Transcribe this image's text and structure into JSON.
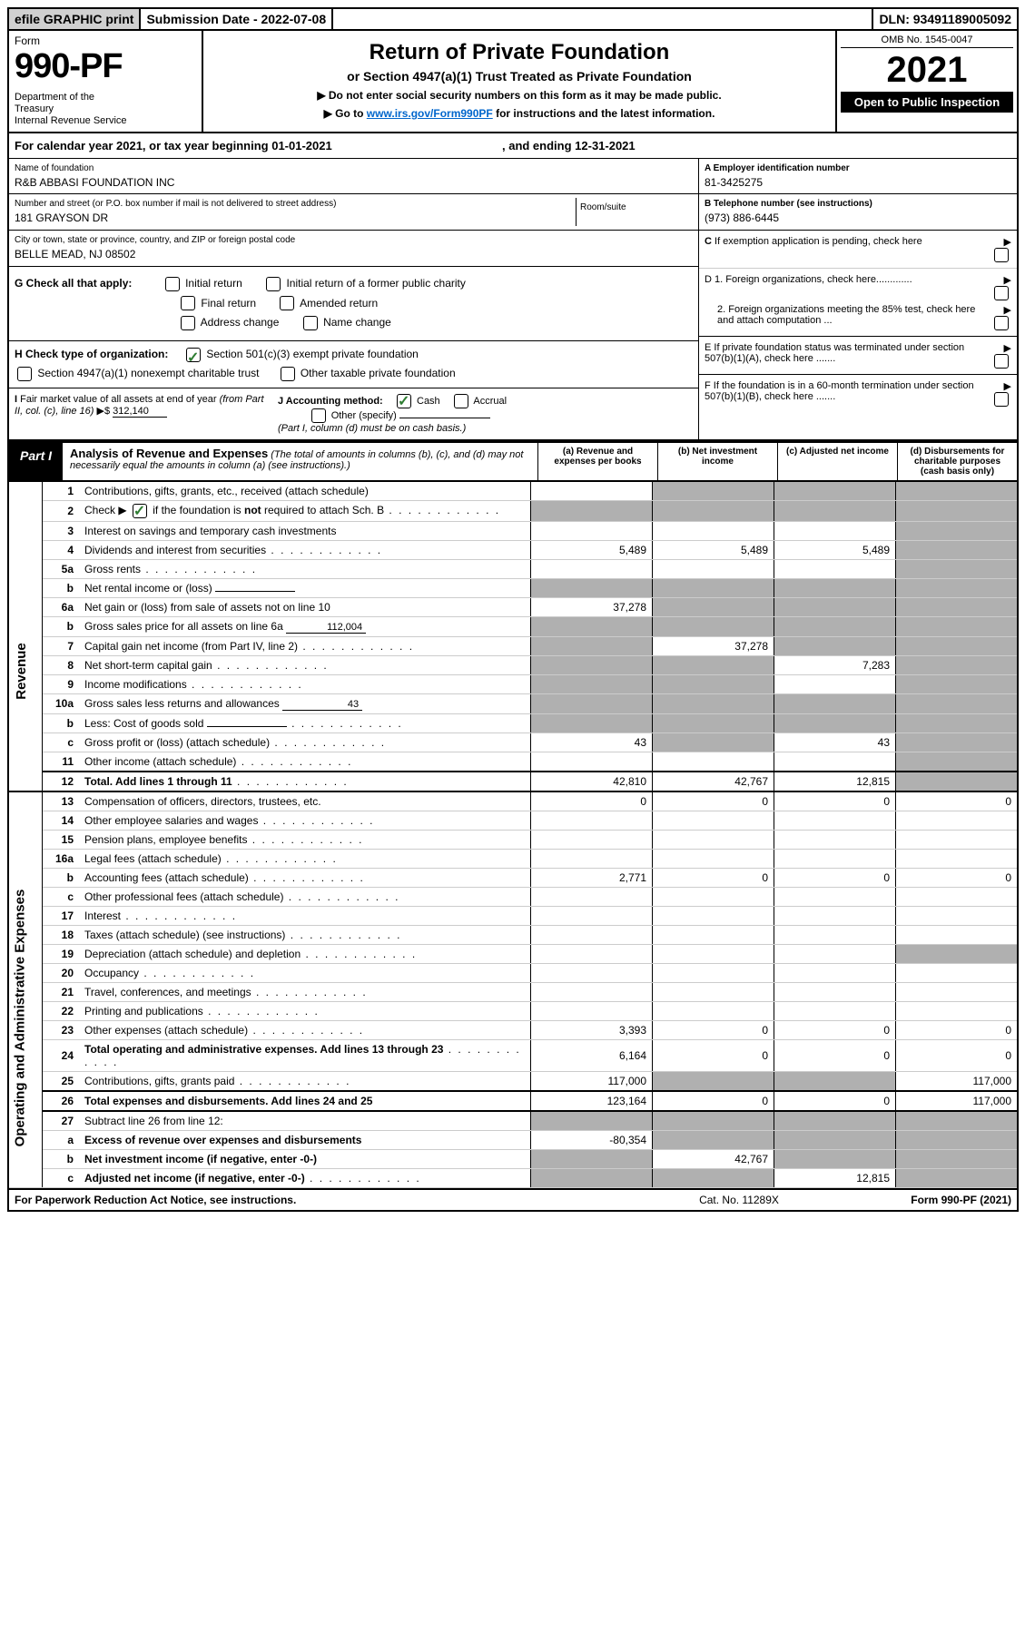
{
  "topbar": {
    "efile": "efile GRAPHIC print",
    "sub_label": "Submission Date - 2022-07-08",
    "dln": "DLN: 93491189005092"
  },
  "header": {
    "form_label": "Form",
    "form_num": "990-PF",
    "dept": "Department of the Treasury\nInternal Revenue Service",
    "title": "Return of Private Foundation",
    "subtitle": "or Section 4947(a)(1) Trust Treated as Private Foundation",
    "instr1": "▶ Do not enter social security numbers on this form as it may be made public.",
    "instr2_pre": "▶ Go to ",
    "instr2_link": "www.irs.gov/Form990PF",
    "instr2_post": " for instructions and the latest information.",
    "omb": "OMB No. 1545-0047",
    "year": "2021",
    "inspect": "Open to Public Inspection"
  },
  "calendar": {
    "text": "For calendar year 2021, or tax year beginning 01-01-2021",
    "end": ", and ending 12-31-2021"
  },
  "info": {
    "name_label": "Name of foundation",
    "name": "R&B ABBASI FOUNDATION INC",
    "addr_label": "Number and street (or P.O. box number if mail is not delivered to street address)",
    "addr": "181 GRAYSON DR",
    "room_label": "Room/suite",
    "city_label": "City or town, state or province, country, and ZIP or foreign postal code",
    "city": "BELLE MEAD, NJ  08502",
    "ein_label": "A Employer identification number",
    "ein": "81-3425275",
    "tel_label": "B Telephone number (see instructions)",
    "tel": "(973) 886-6445",
    "c_label": "C If exemption application is pending, check here",
    "d1": "D 1. Foreign organizations, check here.............",
    "d2": "2. Foreign organizations meeting the 85% test, check here and attach computation ...",
    "e": "E  If private foundation status was terminated under section 507(b)(1)(A), check here .......",
    "f": "F  If the foundation is in a 60-month termination under section 507(b)(1)(B), check here ......."
  },
  "g": {
    "label": "G Check all that apply:",
    "opts": [
      "Initial return",
      "Initial return of a former public charity",
      "Final return",
      "Amended return",
      "Address change",
      "Name change"
    ]
  },
  "h": {
    "label": "H Check type of organization:",
    "opt1": "Section 501(c)(3) exempt private foundation",
    "opt2": "Section 4947(a)(1) nonexempt charitable trust",
    "opt3": "Other taxable private foundation"
  },
  "i": {
    "label": "I Fair market value of all assets at end of year (from Part II, col. (c), line 16)",
    "val": "312,140"
  },
  "j": {
    "label": "J Accounting method:",
    "cash": "Cash",
    "accrual": "Accrual",
    "other": "Other (specify)",
    "note": "(Part I, column (d) must be on cash basis.)"
  },
  "part1": {
    "tab": "Part I",
    "title": "Analysis of Revenue and Expenses",
    "note": "(The total of amounts in columns (b), (c), and (d) may not necessarily equal the amounts in column (a) (see instructions).)",
    "cols": {
      "a": "(a)  Revenue and expenses per books",
      "b": "(b)  Net investment income",
      "c": "(c)  Adjusted net income",
      "d": "(d)  Disbursements for charitable purposes (cash basis only)"
    }
  },
  "side": {
    "revenue": "Revenue",
    "expenses": "Operating and Administrative Expenses"
  },
  "rows": [
    {
      "n": "1",
      "d": "Contributions, gifts, grants, etc., received (attach schedule)",
      "a": "",
      "b": "gray",
      "c": "gray",
      "dd": "gray"
    },
    {
      "n": "2",
      "d": "Check ▶ ☑ if the foundation is not required to attach Sch. B",
      "dots": true,
      "a": "gray",
      "b": "gray",
      "c": "gray",
      "dd": "gray",
      "checked": true
    },
    {
      "n": "3",
      "d": "Interest on savings and temporary cash investments",
      "a": "",
      "b": "",
      "c": "",
      "dd": "gray"
    },
    {
      "n": "4",
      "d": "Dividends and interest from securities",
      "dots": true,
      "a": "5,489",
      "b": "5,489",
      "c": "5,489",
      "dd": "gray"
    },
    {
      "n": "5a",
      "d": "Gross rents",
      "dots": true,
      "a": "",
      "b": "",
      "c": "",
      "dd": "gray"
    },
    {
      "n": "b",
      "d": "Net rental income or (loss)",
      "inline": "",
      "a": "gray",
      "b": "gray",
      "c": "gray",
      "dd": "gray"
    },
    {
      "n": "6a",
      "d": "Net gain or (loss) from sale of assets not on line 10",
      "a": "37,278",
      "b": "gray",
      "c": "gray",
      "dd": "gray"
    },
    {
      "n": "b",
      "d": "Gross sales price for all assets on line 6a",
      "inline": "112,004",
      "a": "gray",
      "b": "gray",
      "c": "gray",
      "dd": "gray"
    },
    {
      "n": "7",
      "d": "Capital gain net income (from Part IV, line 2)",
      "dots": true,
      "a": "gray",
      "b": "37,278",
      "c": "gray",
      "dd": "gray"
    },
    {
      "n": "8",
      "d": "Net short-term capital gain",
      "dots": true,
      "a": "gray",
      "b": "gray",
      "c": "7,283",
      "dd": "gray"
    },
    {
      "n": "9",
      "d": "Income modifications",
      "dots": true,
      "a": "gray",
      "b": "gray",
      "c": "",
      "dd": "gray"
    },
    {
      "n": "10a",
      "d": "Gross sales less returns and allowances",
      "inline": "43",
      "a": "gray",
      "b": "gray",
      "c": "gray",
      "dd": "gray"
    },
    {
      "n": "b",
      "d": "Less: Cost of goods sold",
      "dots": true,
      "inline": "",
      "a": "gray",
      "b": "gray",
      "c": "gray",
      "dd": "gray"
    },
    {
      "n": "c",
      "d": "Gross profit or (loss) (attach schedule)",
      "dots": true,
      "a": "43",
      "b": "gray",
      "c": "43",
      "dd": "gray"
    },
    {
      "n": "11",
      "d": "Other income (attach schedule)",
      "dots": true,
      "a": "",
      "b": "",
      "c": "",
      "dd": "gray"
    },
    {
      "n": "12",
      "d": "Total. Add lines 1 through 11",
      "dots": true,
      "bold": true,
      "a": "42,810",
      "b": "42,767",
      "c": "12,815",
      "dd": "gray"
    },
    {
      "n": "13",
      "d": "Compensation of officers, directors, trustees, etc.",
      "a": "0",
      "b": "0",
      "c": "0",
      "dd": "0",
      "sectstart": true
    },
    {
      "n": "14",
      "d": "Other employee salaries and wages",
      "dots": true,
      "a": "",
      "b": "",
      "c": "",
      "dd": ""
    },
    {
      "n": "15",
      "d": "Pension plans, employee benefits",
      "dots": true,
      "a": "",
      "b": "",
      "c": "",
      "dd": ""
    },
    {
      "n": "16a",
      "d": "Legal fees (attach schedule)",
      "dots": true,
      "a": "",
      "b": "",
      "c": "",
      "dd": ""
    },
    {
      "n": "b",
      "d": "Accounting fees (attach schedule)",
      "dots": true,
      "a": "2,771",
      "b": "0",
      "c": "0",
      "dd": "0"
    },
    {
      "n": "c",
      "d": "Other professional fees (attach schedule)",
      "dots": true,
      "a": "",
      "b": "",
      "c": "",
      "dd": ""
    },
    {
      "n": "17",
      "d": "Interest",
      "dots": true,
      "a": "",
      "b": "",
      "c": "",
      "dd": ""
    },
    {
      "n": "18",
      "d": "Taxes (attach schedule) (see instructions)",
      "dots": true,
      "a": "",
      "b": "",
      "c": "",
      "dd": ""
    },
    {
      "n": "19",
      "d": "Depreciation (attach schedule) and depletion",
      "dots": true,
      "a": "",
      "b": "",
      "c": "",
      "dd": "gray"
    },
    {
      "n": "20",
      "d": "Occupancy",
      "dots": true,
      "a": "",
      "b": "",
      "c": "",
      "dd": ""
    },
    {
      "n": "21",
      "d": "Travel, conferences, and meetings",
      "dots": true,
      "a": "",
      "b": "",
      "c": "",
      "dd": ""
    },
    {
      "n": "22",
      "d": "Printing and publications",
      "dots": true,
      "a": "",
      "b": "",
      "c": "",
      "dd": ""
    },
    {
      "n": "23",
      "d": "Other expenses (attach schedule)",
      "dots": true,
      "a": "3,393",
      "b": "0",
      "c": "0",
      "dd": "0"
    },
    {
      "n": "24",
      "d": "Total operating and administrative expenses. Add lines 13 through 23",
      "dots": true,
      "bold": true,
      "a": "6,164",
      "b": "0",
      "c": "0",
      "dd": "0"
    },
    {
      "n": "25",
      "d": "Contributions, gifts, grants paid",
      "dots": true,
      "a": "117,000",
      "b": "gray",
      "c": "gray",
      "dd": "117,000"
    },
    {
      "n": "26",
      "d": "Total expenses and disbursements. Add lines 24 and 25",
      "bold": true,
      "a": "123,164",
      "b": "0",
      "c": "0",
      "dd": "117,000"
    },
    {
      "n": "27",
      "d": "Subtract line 26 from line 12:",
      "a": "gray",
      "b": "gray",
      "c": "gray",
      "dd": "gray",
      "sectstart2": true
    },
    {
      "n": "a",
      "d": "Excess of revenue over expenses and disbursements",
      "bold": true,
      "a": "-80,354",
      "b": "gray",
      "c": "gray",
      "dd": "gray"
    },
    {
      "n": "b",
      "d": "Net investment income (if negative, enter -0-)",
      "bold": true,
      "a": "gray",
      "b": "42,767",
      "c": "gray",
      "dd": "gray"
    },
    {
      "n": "c",
      "d": "Adjusted net income (if negative, enter -0-)",
      "dots": true,
      "bold": true,
      "a": "gray",
      "b": "gray",
      "c": "12,815",
      "dd": "gray"
    }
  ],
  "footer": {
    "left": "For Paperwork Reduction Act Notice, see instructions.",
    "mid": "Cat. No. 11289X",
    "right": "Form 990-PF (2021)"
  }
}
